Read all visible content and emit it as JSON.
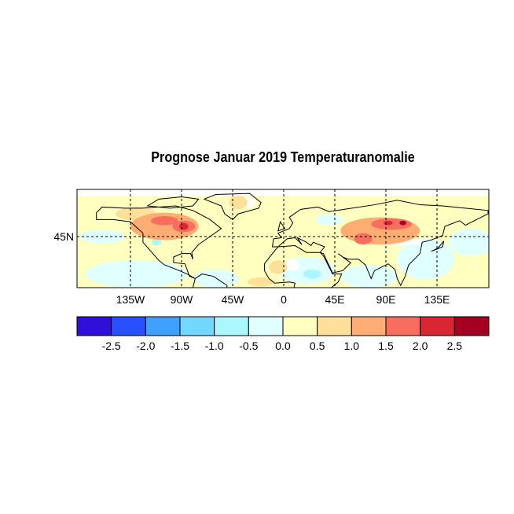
{
  "title": "Prognose Januar 2019 Temperaturanomalie",
  "map": {
    "projection": "equirectangular",
    "lon_range": [
      -180,
      180
    ],
    "lat_range": [
      0,
      87
    ],
    "lon_ticks": [
      {
        "value": -135,
        "label": "135W"
      },
      {
        "value": -90,
        "label": "90W"
      },
      {
        "value": -45,
        "label": "45W"
      },
      {
        "value": 0,
        "label": "0"
      },
      {
        "value": 45,
        "label": "45E"
      },
      {
        "value": 90,
        "label": "90E"
      },
      {
        "value": 135,
        "label": "135E"
      }
    ],
    "lat_ticks": [
      {
        "value": 45,
        "label": "45N"
      }
    ],
    "gridlines": "dashed"
  },
  "colorbar": {
    "colors": [
      "#3010D8",
      "#2850FF",
      "#3FA0FF",
      "#72D8FF",
      "#AAF7FF",
      "#E0FFFF",
      "#FFFFBF",
      "#FFE099",
      "#FFAD72",
      "#F76D5E",
      "#D82632",
      "#A50021"
    ],
    "labels": [
      "-2.5",
      "-2.0",
      "-1.5",
      "-1.0",
      "-0.5",
      "0.0",
      "0.5",
      "1.0",
      "1.5",
      "2.0",
      "2.5"
    ]
  }
}
